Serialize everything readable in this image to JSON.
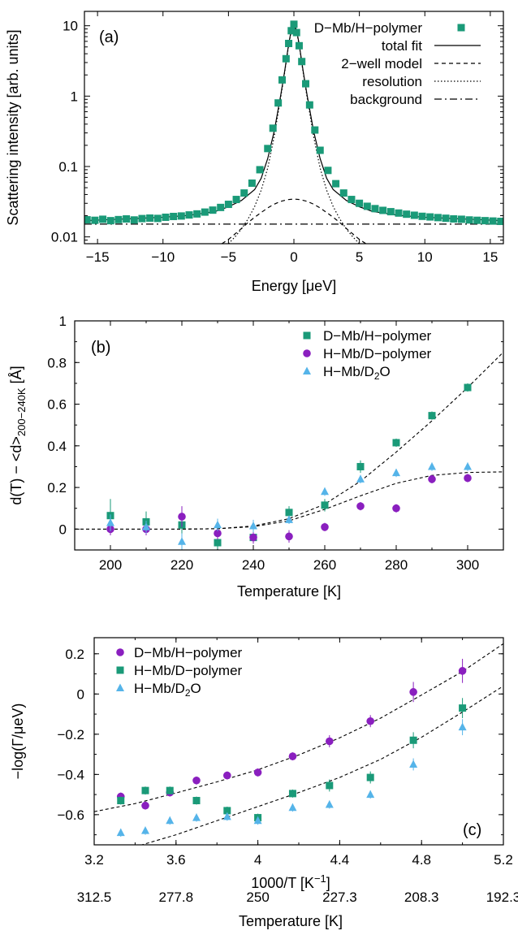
{
  "chart_data": [
    {
      "type": "scatter",
      "panel_label": "(a)",
      "xlabel": "Energy [μeV]",
      "ylabel": "Scattering intensity [arb. units]",
      "xlim": [
        -16,
        16
      ],
      "ylim": [
        0.008,
        16
      ],
      "yscale": "log",
      "xticks": [
        -15,
        -10,
        -5,
        0,
        5,
        10,
        15
      ],
      "xtick_labels": [
        "−15",
        "−10",
        "−5",
        "0",
        "5",
        "10",
        "15"
      ],
      "yticks": [
        0.01,
        0.1,
        1,
        10
      ],
      "ytick_labels": [
        "0.01",
        "0.1",
        "1",
        "10"
      ],
      "legend_position": "top-right",
      "colors": {
        "data": "#1a9a78",
        "line": "#000000"
      },
      "series": [
        {
          "name": "D−Mb/H−polymer",
          "kind": "points",
          "marker": "square",
          "x": [
            -15.8,
            -15.2,
            -14.6,
            -14.0,
            -13.4,
            -12.8,
            -12.2,
            -11.6,
            -11.0,
            -10.4,
            -9.8,
            -9.2,
            -8.6,
            -8.0,
            -7.4,
            -6.8,
            -6.2,
            -5.6,
            -5.0,
            -4.4,
            -3.8,
            -3.2,
            -2.6,
            -2.0,
            -1.6,
            -1.2,
            -0.9,
            -0.6,
            -0.4,
            -0.2,
            0.0,
            0.2,
            0.4,
            0.6,
            0.9,
            1.2,
            1.6,
            2.0,
            2.6,
            3.2,
            3.8,
            4.4,
            5.0,
            5.6,
            6.2,
            6.8,
            7.4,
            8.0,
            8.6,
            9.2,
            9.8,
            10.4,
            11.0,
            11.6,
            12.2,
            12.8,
            13.4,
            14.0,
            14.6,
            15.2,
            15.8
          ],
          "y": [
            0.0175,
            0.0172,
            0.0178,
            0.017,
            0.0176,
            0.018,
            0.0174,
            0.0182,
            0.0185,
            0.0183,
            0.019,
            0.0195,
            0.0198,
            0.0205,
            0.0212,
            0.0225,
            0.024,
            0.0262,
            0.029,
            0.034,
            0.042,
            0.058,
            0.09,
            0.18,
            0.35,
            0.8,
            1.7,
            3.4,
            5.6,
            8.5,
            10.5,
            8.0,
            5.2,
            3.1,
            1.5,
            0.75,
            0.33,
            0.17,
            0.088,
            0.057,
            0.042,
            0.034,
            0.03,
            0.0272,
            0.0252,
            0.0238,
            0.0228,
            0.0218,
            0.021,
            0.0203,
            0.0196,
            0.0192,
            0.0188,
            0.0184,
            0.018,
            0.0178,
            0.0174,
            0.0172,
            0.017,
            0.0168,
            0.0166
          ]
        },
        {
          "name": "total fit",
          "kind": "line",
          "dash": "solid",
          "x": [
            -16,
            -14,
            -12,
            -10,
            -8,
            -6,
            -5,
            -4,
            -3,
            -2.5,
            -2,
            -1.5,
            -1,
            -0.7,
            -0.4,
            -0.2,
            0,
            0.2,
            0.4,
            0.7,
            1,
            1.5,
            2,
            2.5,
            3,
            4,
            5,
            6,
            8,
            10,
            12,
            14,
            16
          ],
          "y": [
            0.017,
            0.0176,
            0.0183,
            0.019,
            0.0202,
            0.023,
            0.0268,
            0.033,
            0.047,
            0.068,
            0.13,
            0.32,
            1.05,
            2.3,
            5.5,
            8.7,
            10.5,
            8.7,
            5.5,
            2.3,
            1.05,
            0.32,
            0.13,
            0.068,
            0.047,
            0.033,
            0.0268,
            0.023,
            0.0202,
            0.019,
            0.0183,
            0.0176,
            0.017
          ]
        },
        {
          "name": "2−well model",
          "kind": "line",
          "dash": "dashed",
          "x": [
            -5.5,
            -5,
            -4.5,
            -4,
            -3.5,
            -3,
            -2.5,
            -2,
            -1.5,
            -1,
            -0.5,
            0,
            0.5,
            1,
            1.5,
            2,
            2.5,
            3,
            3.5,
            4,
            4.5,
            5,
            5.5
          ],
          "y": [
            0.008,
            0.0092,
            0.011,
            0.0132,
            0.016,
            0.019,
            0.0222,
            0.0258,
            0.0292,
            0.032,
            0.0338,
            0.0345,
            0.0338,
            0.032,
            0.0292,
            0.0258,
            0.0222,
            0.019,
            0.016,
            0.0132,
            0.011,
            0.0092,
            0.008
          ]
        },
        {
          "name": "resolution",
          "kind": "line",
          "dash": "dotted",
          "x": [
            -5,
            -4.5,
            -4,
            -3.5,
            -3,
            -2.5,
            -2,
            -1.5,
            -1,
            -0.7,
            -0.4,
            -0.2,
            0,
            0.2,
            0.4,
            0.7,
            1,
            1.5,
            2,
            2.5,
            3,
            3.5,
            4,
            4.5,
            5
          ],
          "y": [
            0.008,
            0.01,
            0.013,
            0.018,
            0.027,
            0.046,
            0.095,
            0.27,
            0.98,
            2.2,
            5.3,
            8.4,
            10.0,
            8.4,
            5.3,
            2.2,
            0.98,
            0.27,
            0.095,
            0.046,
            0.027,
            0.018,
            0.013,
            0.01,
            0.008
          ]
        },
        {
          "name": "background",
          "kind": "line",
          "dash": "dashdot",
          "x": [
            -16,
            16
          ],
          "y": [
            0.0152,
            0.0152
          ]
        }
      ]
    },
    {
      "type": "scatter",
      "panel_label": "(b)",
      "xlabel": "Temperature [K]",
      "ylabel": "d(T) − <d>200−240K [Å]",
      "ylabel_main": "d(T) − <d>",
      "ylabel_sub": "200−240K",
      "ylabel_unit": " [Å]",
      "xlim": [
        190,
        310
      ],
      "ylim": [
        -0.1,
        1.0
      ],
      "xticks": [
        200,
        220,
        240,
        260,
        280,
        300
      ],
      "xtick_labels": [
        "200",
        "220",
        "240",
        "260",
        "280",
        "300"
      ],
      "yticks": [
        0,
        0.2,
        0.4,
        0.6,
        0.8,
        1
      ],
      "ytick_labels": [
        "0",
        "0.2",
        "0.4",
        "0.6",
        "0.8",
        "1"
      ],
      "legend_position": "top-right",
      "colors": {
        "green": "#1a9a78",
        "purple": "#8a1fbf",
        "blue": "#55b4e9"
      },
      "series": [
        {
          "name": "D−Mb/H−polymer",
          "marker": "square",
          "color": "#1a9a78",
          "x": [
            200,
            210,
            220,
            230,
            240,
            250,
            260,
            270,
            280,
            290,
            300
          ],
          "y": [
            0.065,
            0.035,
            0.02,
            -0.065,
            -0.04,
            0.08,
            0.115,
            0.3,
            0.415,
            0.545,
            0.68
          ],
          "err": [
            0.08,
            0.05,
            0.04,
            0.03,
            0.03,
            0.03,
            0.03,
            0.03,
            0.02,
            0.02,
            0.02
          ]
        },
        {
          "name": "H−Mb/D−polymer",
          "marker": "circle",
          "color": "#8a1fbf",
          "x": [
            200,
            210,
            220,
            230,
            240,
            250,
            260,
            270,
            280,
            290,
            300
          ],
          "y": [
            0.0,
            0.0,
            0.06,
            -0.02,
            -0.04,
            -0.035,
            0.01,
            0.11,
            0.1,
            0.24,
            0.245
          ],
          "err": [
            0.03,
            0.03,
            0.05,
            0.03,
            0.03,
            0.03,
            0.02,
            0.02,
            0.02,
            0.02,
            0.02
          ]
        },
        {
          "name": "H−Mb/D2O",
          "name_main": "H−Mb/D",
          "name_sub": "2",
          "name_tail": "O",
          "marker": "triangle",
          "color": "#55b4e9",
          "x": [
            200,
            210,
            220,
            230,
            240,
            250,
            260,
            270,
            280,
            290,
            300
          ],
          "y": [
            0.03,
            0.01,
            -0.06,
            0.02,
            0.015,
            0.045,
            0.18,
            0.24,
            0.27,
            0.3,
            0.3
          ],
          "err": [
            0.04,
            0.03,
            0.04,
            0.03,
            0.03,
            0.02,
            0.02,
            0.02,
            0.02,
            0.02,
            0.02
          ]
        }
      ],
      "fits": [
        {
          "x": [
            190,
            200,
            210,
            220,
            230,
            240,
            250,
            260,
            270,
            280,
            290,
            300,
            310
          ],
          "y": [
            0,
            0,
            0,
            0,
            0.002,
            0.015,
            0.05,
            0.12,
            0.23,
            0.37,
            0.52,
            0.68,
            0.85
          ]
        },
        {
          "x": [
            190,
            200,
            210,
            220,
            230,
            240,
            250,
            260,
            270,
            280,
            290,
            300,
            310
          ],
          "y": [
            0,
            0,
            0,
            0,
            0.002,
            0.012,
            0.04,
            0.095,
            0.16,
            0.22,
            0.258,
            0.272,
            0.275
          ]
        }
      ]
    },
    {
      "type": "scatter",
      "panel_label": "(c)",
      "xlabel": "1000/T [K−1]",
      "xlabel_main": "1000/T [K",
      "xlabel_sup": "−1",
      "xlabel_tail": "]",
      "ylabel": "−log(Γ/μeV)",
      "x2label": "Temperature [K]",
      "xlim": [
        3.2,
        5.2
      ],
      "ylim": [
        -0.75,
        0.28
      ],
      "xticks": [
        3.2,
        3.6,
        4,
        4.4,
        4.8,
        5.2
      ],
      "xtick_labels": [
        "3.2",
        "3.6",
        "4",
        "4.4",
        "4.8",
        "5.2"
      ],
      "x2tick_labels": [
        "312.5",
        "277.8",
        "250",
        "227.3",
        "208.3",
        "192.3"
      ],
      "yticks": [
        -0.6,
        -0.4,
        -0.2,
        0,
        0.2
      ],
      "ytick_labels": [
        "−0.6",
        "−0.4",
        "−0.2",
        "0",
        "0.2"
      ],
      "legend_position": "top-left",
      "series": [
        {
          "name": "D−Mb/H−polymer",
          "marker": "circle",
          "color": "#8a1fbf",
          "x": [
            3.33,
            3.45,
            3.57,
            3.7,
            3.85,
            4.0,
            4.17,
            4.35,
            4.55,
            4.76,
            5.0
          ],
          "y": [
            -0.51,
            -0.555,
            -0.49,
            -0.43,
            -0.405,
            -0.39,
            -0.31,
            -0.235,
            -0.135,
            0.01,
            0.115
          ],
          "err": [
            0.02,
            0.02,
            0.02,
            0.02,
            0.02,
            0.02,
            0.02,
            0.03,
            0.03,
            0.05,
            0.06
          ]
        },
        {
          "name": "H−Mb/D−polymer",
          "marker": "square",
          "color": "#1a9a78",
          "x": [
            3.33,
            3.45,
            3.57,
            3.7,
            3.85,
            4.0,
            4.17,
            4.35,
            4.55,
            4.76,
            5.0
          ],
          "y": [
            -0.53,
            -0.48,
            -0.48,
            -0.53,
            -0.58,
            -0.615,
            -0.495,
            -0.455,
            -0.415,
            -0.23,
            -0.07
          ],
          "err": [
            0.02,
            0.02,
            0.02,
            0.02,
            0.02,
            0.02,
            0.02,
            0.03,
            0.03,
            0.04,
            0.05
          ]
        },
        {
          "name": "H−Mb/D2O",
          "name_main": "H−Mb/D",
          "name_sub": "2",
          "name_tail": "O",
          "marker": "triangle",
          "color": "#55b4e9",
          "x": [
            3.33,
            3.45,
            3.57,
            3.7,
            3.85,
            4.0,
            4.17,
            4.35,
            4.55,
            4.76,
            5.0
          ],
          "y": [
            -0.69,
            -0.68,
            -0.63,
            -0.615,
            -0.61,
            -0.63,
            -0.565,
            -0.55,
            -0.5,
            -0.35,
            -0.165
          ],
          "err": [
            0.02,
            0.02,
            0.02,
            0.02,
            0.02,
            0.02,
            0.02,
            0.02,
            0.02,
            0.03,
            0.04
          ]
        }
      ],
      "fits": [
        {
          "x": [
            3.2,
            3.4,
            3.6,
            3.8,
            4.0,
            4.2,
            4.4,
            4.6,
            4.8,
            5.0,
            5.2
          ],
          "y": [
            -0.585,
            -0.545,
            -0.492,
            -0.437,
            -0.377,
            -0.303,
            -0.218,
            -0.12,
            -0.005,
            0.112,
            0.25
          ]
        },
        {
          "x": [
            3.4,
            3.6,
            3.8,
            4.0,
            4.2,
            4.4,
            4.6,
            4.8,
            5.0,
            5.2
          ],
          "y": [
            -0.76,
            -0.7,
            -0.63,
            -0.56,
            -0.49,
            -0.415,
            -0.325,
            -0.215,
            -0.09,
            0.04
          ]
        }
      ]
    }
  ]
}
